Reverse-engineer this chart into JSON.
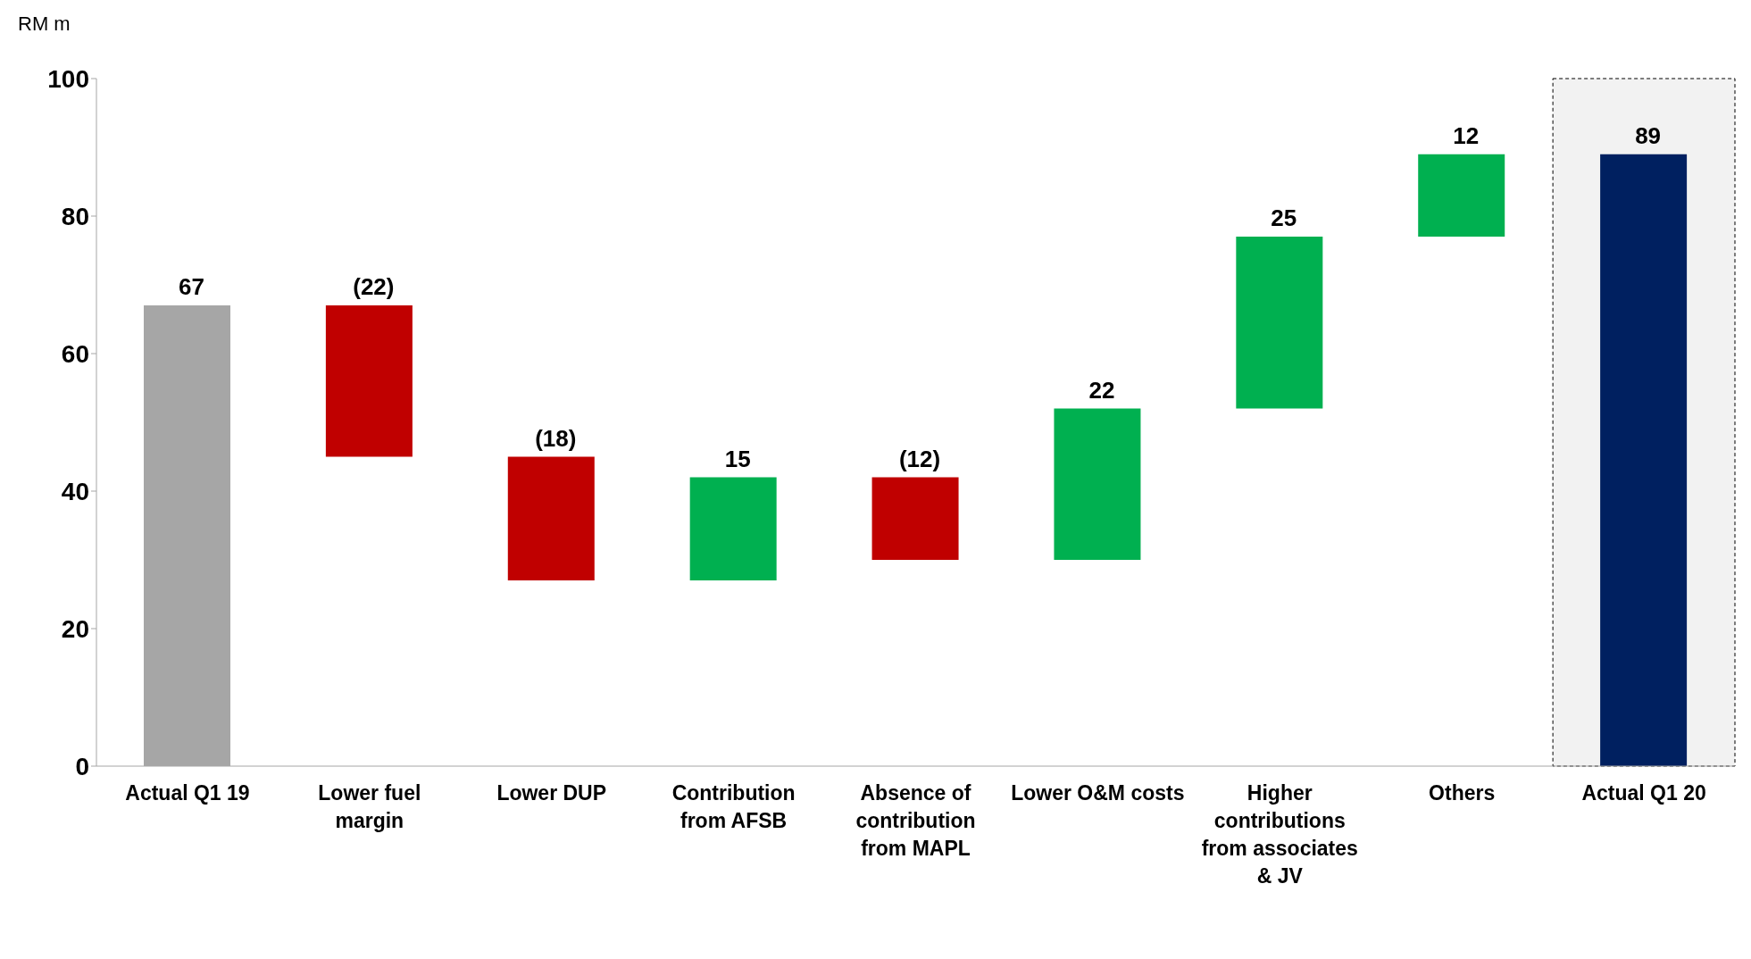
{
  "chart_data": {
    "type": "bar",
    "ylabel": "RM m",
    "categories": [
      "Actual Q1 19",
      "Lower fuel margin",
      "Lower DUP",
      "Contribution from AFSB",
      "Absence of contribution from MAPL",
      "Lower O&M costs",
      "Higher contributions from associates & JV",
      "Others",
      "Actual Q1 20"
    ],
    "values": [
      67,
      -22,
      -18,
      15,
      -12,
      22,
      25,
      12,
      89
    ],
    "base": [
      0,
      67,
      45,
      27,
      42,
      30,
      52,
      77,
      0
    ],
    "colors": [
      "#a6a6a6",
      "#c00000",
      "#c00000",
      "#00b050",
      "#c00000",
      "#00b050",
      "#00b050",
      "#00b050",
      "#002060"
    ],
    "value_labels": [
      "67",
      "(22)",
      "(18)",
      "15",
      "(12)",
      "22",
      "25",
      "12",
      "89"
    ],
    "ylim": [
      0,
      100
    ],
    "yticks": [
      0,
      20,
      40,
      60,
      80,
      100
    ],
    "bands": [
      {
        "axis": "x",
        "from": "Actual Q1 20",
        "to": "Actual Q1 20",
        "color": "#f2f2f2"
      }
    ],
    "grid": false
  }
}
